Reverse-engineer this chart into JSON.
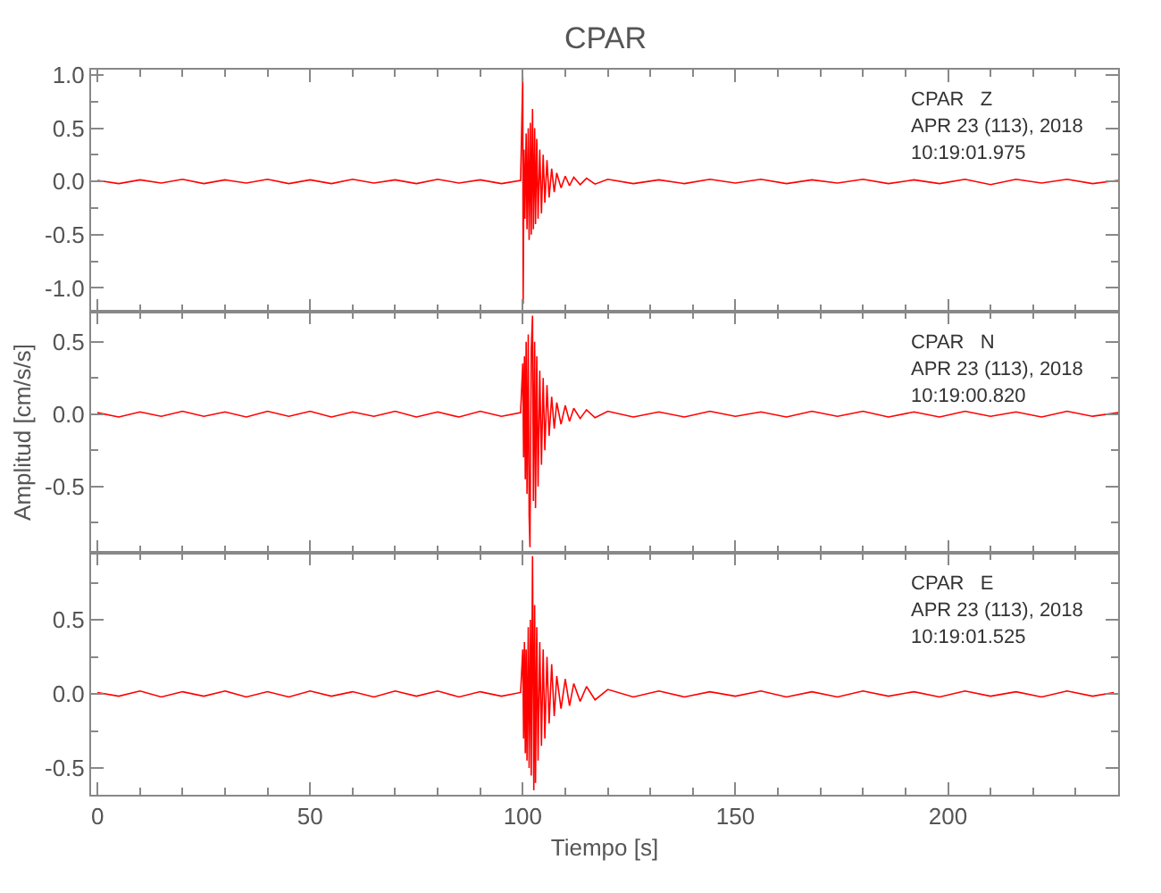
{
  "chart_data": [
    {
      "type": "line",
      "title": "CPAR",
      "tick_labels": "y",
      "x": [
        0,
        5,
        10,
        15,
        20,
        25,
        30,
        35,
        40,
        45,
        50,
        55,
        60,
        65,
        70,
        75,
        80,
        85,
        90,
        95,
        99.5,
        100.0,
        100.1,
        100.3,
        100.5,
        100.8,
        101.0,
        101.3,
        101.5,
        101.8,
        102.0,
        102.3,
        102.5,
        102.8,
        103.0,
        103.3,
        103.6,
        104.0,
        104.4,
        104.8,
        105.2,
        105.7,
        106.2,
        106.8,
        107.4,
        108,
        109,
        110,
        111,
        112,
        113.5,
        115,
        117,
        120,
        126,
        132,
        138,
        144,
        150,
        156,
        162,
        168,
        174,
        180,
        186,
        192,
        198,
        204,
        210,
        216,
        222,
        228,
        234,
        240
      ],
      "series": [
        {
          "color": "#ff0000",
          "values": [
            0.01,
            -0.02,
            0.015,
            -0.015,
            0.02,
            -0.02,
            0.015,
            -0.015,
            0.02,
            -0.02,
            0.015,
            -0.02,
            0.02,
            -0.015,
            0.015,
            -0.02,
            0.02,
            -0.015,
            0.015,
            -0.02,
            0.01,
            0.98,
            -1.15,
            0.3,
            -0.35,
            0.45,
            -0.45,
            0.5,
            -0.55,
            0.55,
            -0.5,
            0.68,
            -0.45,
            0.5,
            -0.4,
            0.4,
            -0.35,
            0.3,
            -0.3,
            0.25,
            -0.2,
            0.2,
            -0.15,
            0.12,
            -0.1,
            0.08,
            -0.06,
            0.05,
            -0.04,
            0.04,
            -0.03,
            0.03,
            -0.025,
            0.02,
            -0.02,
            0.015,
            -0.02,
            0.02,
            -0.015,
            0.02,
            -0.02,
            0.015,
            -0.015,
            0.02,
            -0.02,
            0.015,
            -0.02,
            0.02,
            -0.03,
            0.02,
            -0.015,
            0.02,
            -0.02,
            0.01
          ]
        }
      ],
      "xlim": [
        -1.5,
        240
      ],
      "xticks": [
        0,
        50,
        100,
        150,
        200
      ],
      "ylim": [
        -1.22,
        1.05
      ],
      "yticks": [
        {
          "value": -1,
          "label": "-1.0"
        },
        {
          "value": -0.5,
          "label": "-0.5"
        },
        {
          "value": 0,
          "label": "0.0"
        },
        {
          "value": 0.5,
          "label": "0.5"
        },
        {
          "value": 1,
          "label": "1.0"
        }
      ],
      "annotations": [
        "CPAR   Z",
        "APR 23 (113), 2018",
        "10:19:01.975"
      ]
    },
    {
      "type": "line",
      "ylabel": "Amplitud [cm/s/s]",
      "tick_labels": "y",
      "x": [
        0,
        5,
        10,
        15,
        20,
        25,
        30,
        35,
        40,
        45,
        50,
        55,
        60,
        65,
        70,
        75,
        80,
        85,
        90,
        95,
        99.5,
        100.0,
        100.2,
        100.4,
        100.6,
        100.8,
        101.0,
        101.3,
        101.5,
        101.7,
        102.0,
        102.3,
        102.5,
        102.8,
        103.0,
        103.3,
        103.6,
        104.0,
        104.4,
        104.8,
        105.2,
        105.7,
        106.2,
        106.8,
        107.4,
        108,
        109,
        110,
        111,
        112,
        113.5,
        115,
        117,
        120,
        126,
        132,
        138,
        144,
        150,
        156,
        162,
        168,
        174,
        180,
        186,
        192,
        198,
        204,
        210,
        216,
        222,
        228,
        234,
        240
      ],
      "series": [
        {
          "color": "#ff0000",
          "values": [
            0.01,
            -0.02,
            0.015,
            -0.015,
            0.02,
            -0.015,
            0.015,
            -0.02,
            0.02,
            -0.015,
            0.02,
            -0.02,
            0.015,
            -0.015,
            0.02,
            -0.02,
            0.015,
            -0.02,
            0.02,
            -0.015,
            0.01,
            0.35,
            -0.3,
            0.4,
            -0.45,
            0.5,
            -0.55,
            0.55,
            -0.7,
            -0.92,
            0.45,
            0.68,
            -0.6,
            0.5,
            -0.65,
            0.4,
            -0.5,
            0.3,
            -0.35,
            0.25,
            -0.25,
            0.2,
            -0.15,
            0.12,
            -0.1,
            0.08,
            -0.07,
            0.06,
            -0.05,
            0.04,
            -0.03,
            0.03,
            -0.025,
            0.02,
            -0.02,
            0.015,
            -0.02,
            0.02,
            -0.015,
            0.015,
            -0.02,
            0.02,
            -0.015,
            0.02,
            -0.02,
            0.015,
            -0.02,
            0.02,
            -0.015,
            0.015,
            -0.02,
            0.02,
            -0.015,
            0.01
          ]
        }
      ],
      "xlim": [
        -1.5,
        240
      ],
      "xticks": [
        0,
        50,
        100,
        150,
        200
      ],
      "ylim": [
        -0.96,
        0.71
      ],
      "yticks": [
        {
          "value": -0.5,
          "label": "-0.5"
        },
        {
          "value": 0,
          "label": "0.0"
        },
        {
          "value": 0.5,
          "label": "0.5"
        }
      ],
      "annotations": [
        "CPAR   N",
        "APR 23 (113), 2018",
        "10:19:00.820"
      ]
    },
    {
      "type": "line",
      "xlabel": "Tiempo [s]",
      "x": [
        0,
        5,
        10,
        15,
        20,
        25,
        30,
        35,
        40,
        45,
        50,
        55,
        60,
        65,
        70,
        75,
        80,
        85,
        90,
        95,
        99.5,
        100.0,
        100.2,
        100.4,
        100.6,
        100.8,
        101.0,
        101.3,
        101.5,
        101.8,
        102.0,
        102.3,
        102.6,
        102.8,
        103.0,
        103.3,
        103.6,
        104.0,
        104.4,
        104.8,
        105.2,
        105.7,
        106.2,
        106.8,
        107.4,
        108,
        109,
        110,
        111,
        112,
        113.5,
        115,
        117,
        120,
        126,
        132,
        138,
        144,
        150,
        156,
        162,
        168,
        174,
        180,
        186,
        192,
        198,
        204,
        210,
        216,
        222,
        228,
        234,
        239
      ],
      "series": [
        {
          "color": "#ff0000",
          "values": [
            0.01,
            -0.015,
            0.02,
            -0.02,
            0.015,
            -0.015,
            0.02,
            -0.02,
            0.015,
            -0.02,
            0.02,
            -0.015,
            0.015,
            -0.02,
            0.02,
            -0.015,
            0.02,
            -0.02,
            0.015,
            -0.015,
            0.01,
            0.3,
            -0.3,
            0.35,
            -0.4,
            0.3,
            -0.45,
            0.45,
            -0.5,
            0.5,
            -0.55,
            0.93,
            -0.65,
            0.6,
            -0.6,
            0.45,
            -0.45,
            0.35,
            -0.35,
            0.3,
            -0.3,
            0.25,
            -0.2,
            0.2,
            -0.15,
            0.12,
            -0.1,
            0.1,
            -0.08,
            0.07,
            -0.05,
            0.05,
            -0.04,
            0.03,
            -0.02,
            0.02,
            -0.02,
            0.015,
            -0.015,
            0.02,
            -0.02,
            0.015,
            -0.02,
            0.02,
            -0.015,
            0.015,
            -0.02,
            0.02,
            -0.015,
            0.015,
            -0.02,
            0.02,
            -0.015,
            0.01
          ]
        }
      ],
      "xlim": [
        -1.5,
        240
      ],
      "xticks": [
        0,
        50,
        100,
        150,
        200
      ],
      "ylim": [
        -0.68,
        0.95
      ],
      "yticks": [
        {
          "value": -0.5,
          "label": "-0.5"
        },
        {
          "value": 0,
          "label": "0.0"
        },
        {
          "value": 0.5,
          "label": "0.5"
        }
      ],
      "annotations": [
        "CPAR   E",
        "APR 23 (113), 2018",
        "10:19:01.525"
      ]
    }
  ]
}
